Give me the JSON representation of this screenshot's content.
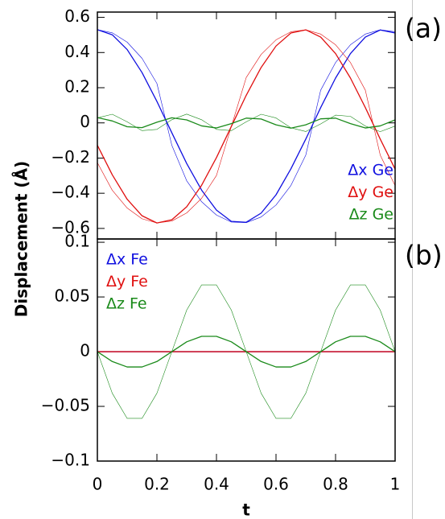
{
  "chart_data": [
    {
      "type": "line",
      "annotation": "(a)",
      "ylabel": "Displacement (Å)",
      "legend": "lower right",
      "xlim": [
        0,
        1
      ],
      "xticks": [
        0,
        0.2,
        0.4,
        0.6,
        0.8,
        1
      ],
      "ylim": [
        -0.66,
        0.63
      ],
      "yticks": [
        {
          "value": -0.6,
          "label": "−0.6"
        },
        {
          "value": -0.4,
          "label": "−0.4"
        },
        {
          "value": -0.2,
          "label": "−0.2"
        },
        0,
        0.2,
        0.4,
        0.6
      ],
      "x": [
        0,
        0.05,
        0.1,
        0.15,
        0.2,
        0.25,
        0.3,
        0.35,
        0.4,
        0.45,
        0.5,
        0.55,
        0.6,
        0.65,
        0.7,
        0.75,
        0.8,
        0.85,
        0.9,
        0.95,
        1
      ],
      "series": [
        {
          "name": "Δx Ge",
          "color": "#1010e0",
          "linewidth": 1.3,
          "values": [
            0.53,
            0.501,
            0.417,
            0.286,
            0.122,
            -0.056,
            -0.231,
            -0.382,
            -0.496,
            -0.56,
            -0.565,
            -0.513,
            -0.409,
            -0.261,
            -0.092,
            0.087,
            0.255,
            0.394,
            0.488,
            0.528,
            0.511
          ]
        },
        {
          "color": "#1010e0",
          "linewidth": 0.6,
          "values": [
            0.53,
            0.512,
            0.459,
            0.367,
            0.224,
            -0.127,
            -0.329,
            -0.448,
            -0.524,
            -0.564,
            -0.567,
            -0.535,
            -0.467,
            -0.356,
            -0.183,
            0.186,
            0.343,
            0.444,
            0.505,
            0.529,
            0.518
          ]
        },
        {
          "name": "Δy Ge",
          "color": "#e01010",
          "linewidth": 1.3,
          "values": [
            -0.127,
            -0.295,
            -0.434,
            -0.528,
            -0.569,
            -0.551,
            -0.477,
            -0.355,
            -0.197,
            -0.02,
            0.157,
            0.315,
            0.437,
            0.511,
            0.529,
            0.488,
            0.394,
            0.255,
            0.087,
            -0.092,
            -0.263
          ]
        },
        {
          "color": "#e01010",
          "linewidth": 0.6,
          "values": [
            -0.226,
            -0.383,
            -0.484,
            -0.545,
            -0.569,
            -0.558,
            -0.512,
            -0.429,
            -0.299,
            -0.02,
            0.258,
            0.389,
            0.472,
            0.518,
            0.529,
            0.505,
            0.444,
            0.343,
            0.186,
            -0.183,
            -0.357
          ]
        },
        {
          "name": "Δz Ge",
          "color": "#1a8a1a",
          "linewidth": 1.3,
          "values": [
            0.03,
            0.011,
            -0.022,
            -0.027,
            0.004,
            0.029,
            0.017,
            -0.017,
            -0.029,
            -0.004,
            0.027,
            0.022,
            -0.011,
            -0.03,
            -0.011,
            0.023,
            0.027,
            -0.004,
            -0.029,
            -0.017,
            0.017
          ]
        },
        {
          "color": "#1a8a1a",
          "linewidth": 0.6,
          "values": [
            0.028,
            0.049,
            0.006,
            -0.044,
            -0.037,
            0.018,
            0.05,
            0.018,
            -0.037,
            -0.044,
            0.006,
            0.049,
            0.028,
            -0.028,
            -0.049,
            -0.006,
            0.044,
            0.037,
            -0.018,
            -0.05,
            -0.018
          ]
        }
      ]
    },
    {
      "type": "line",
      "annotation": "(b)",
      "xlabel": "t",
      "legend": "upper left",
      "xlim": [
        0,
        1
      ],
      "xticks": [
        0,
        0.2,
        0.4,
        0.6,
        0.8,
        1
      ],
      "ylim": [
        -0.1,
        0.103
      ],
      "yticks": [
        {
          "value": -0.1,
          "label": "−0.1"
        },
        {
          "value": -0.05,
          "label": "−0.05"
        },
        0,
        0.05,
        0.1
      ],
      "x": [
        0,
        0.05,
        0.1,
        0.15,
        0.2,
        0.25,
        0.3,
        0.35,
        0.4,
        0.45,
        0.5,
        0.55,
        0.6,
        0.65,
        0.7,
        0.75,
        0.8,
        0.85,
        0.9,
        0.95,
        1
      ],
      "series": [
        {
          "name": "Δx Fe",
          "color": "#1010e0",
          "linewidth": 1.3,
          "values": [
            0,
            0,
            0,
            0,
            0,
            0,
            0,
            0,
            0,
            0,
            0,
            0,
            0,
            0,
            0,
            0,
            0,
            0,
            0,
            0,
            0
          ]
        },
        {
          "name": "Δy Fe",
          "color": "#e01010",
          "linewidth": 1.3,
          "values": [
            0,
            0,
            0,
            0,
            0,
            0,
            0,
            0,
            0,
            0,
            0,
            0,
            0,
            0,
            0,
            0,
            0,
            0,
            0,
            0,
            0
          ]
        },
        {
          "name": "Δz Fe",
          "color": "#1a8a1a",
          "linewidth": 1.3,
          "values": [
            0,
            -0.009,
            -0.014,
            -0.014,
            -0.009,
            0,
            0.009,
            0.014,
            0.014,
            0.009,
            0,
            -0.009,
            -0.014,
            -0.014,
            -0.009,
            0,
            0.009,
            0.014,
            0.014,
            0.009,
            0
          ]
        },
        {
          "color": "#1a8a1a",
          "linewidth": 0.6,
          "values": [
            0,
            -0.038,
            -0.061,
            -0.061,
            -0.038,
            0,
            0.038,
            0.061,
            0.061,
            0.038,
            0,
            -0.038,
            -0.061,
            -0.061,
            -0.038,
            0,
            0.038,
            0.061,
            0.061,
            0.038,
            0
          ]
        }
      ]
    }
  ]
}
